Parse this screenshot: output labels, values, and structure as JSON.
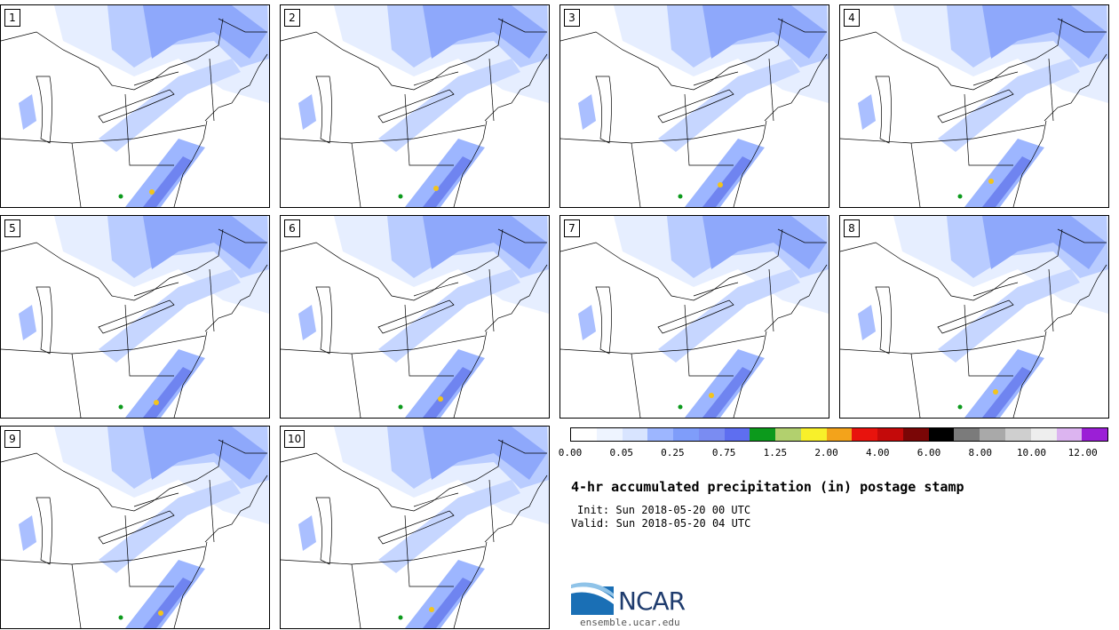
{
  "panels": [
    {
      "label": "1"
    },
    {
      "label": "2"
    },
    {
      "label": "3"
    },
    {
      "label": "4"
    },
    {
      "label": "5"
    },
    {
      "label": "6"
    },
    {
      "label": "7"
    },
    {
      "label": "8"
    },
    {
      "label": "9"
    },
    {
      "label": "10"
    }
  ],
  "legend": {
    "colors": [
      "#ffffff",
      "#eef4ff",
      "#d8e4ff",
      "#9db6ff",
      "#7f9dfa",
      "#7a8cf2",
      "#5e6ef0",
      "#0c9a1c",
      "#b2d06e",
      "#f8f02a",
      "#f3a31b",
      "#e8130d",
      "#c40a0a",
      "#7a0606",
      "#000000",
      "#7b7b7b",
      "#a9a9a9",
      "#cfcfcf",
      "#eeeeee",
      "#dcb4f0",
      "#9b1fd6"
    ],
    "tick_labels": [
      "0.00",
      "0.05",
      "0.25",
      "0.75",
      "1.25",
      "2.00",
      "4.00",
      "6.00",
      "8.00",
      "10.00",
      "12.00"
    ]
  },
  "title": "4-hr accumulated precipitation (in) postage stamp",
  "init": "Init: Sun 2018-05-20 00 UTC",
  "valid": "Valid: Sun 2018-05-20 04 UTC",
  "logo": {
    "text": "NCAR",
    "url": "ensemble.ucar.edu"
  }
}
